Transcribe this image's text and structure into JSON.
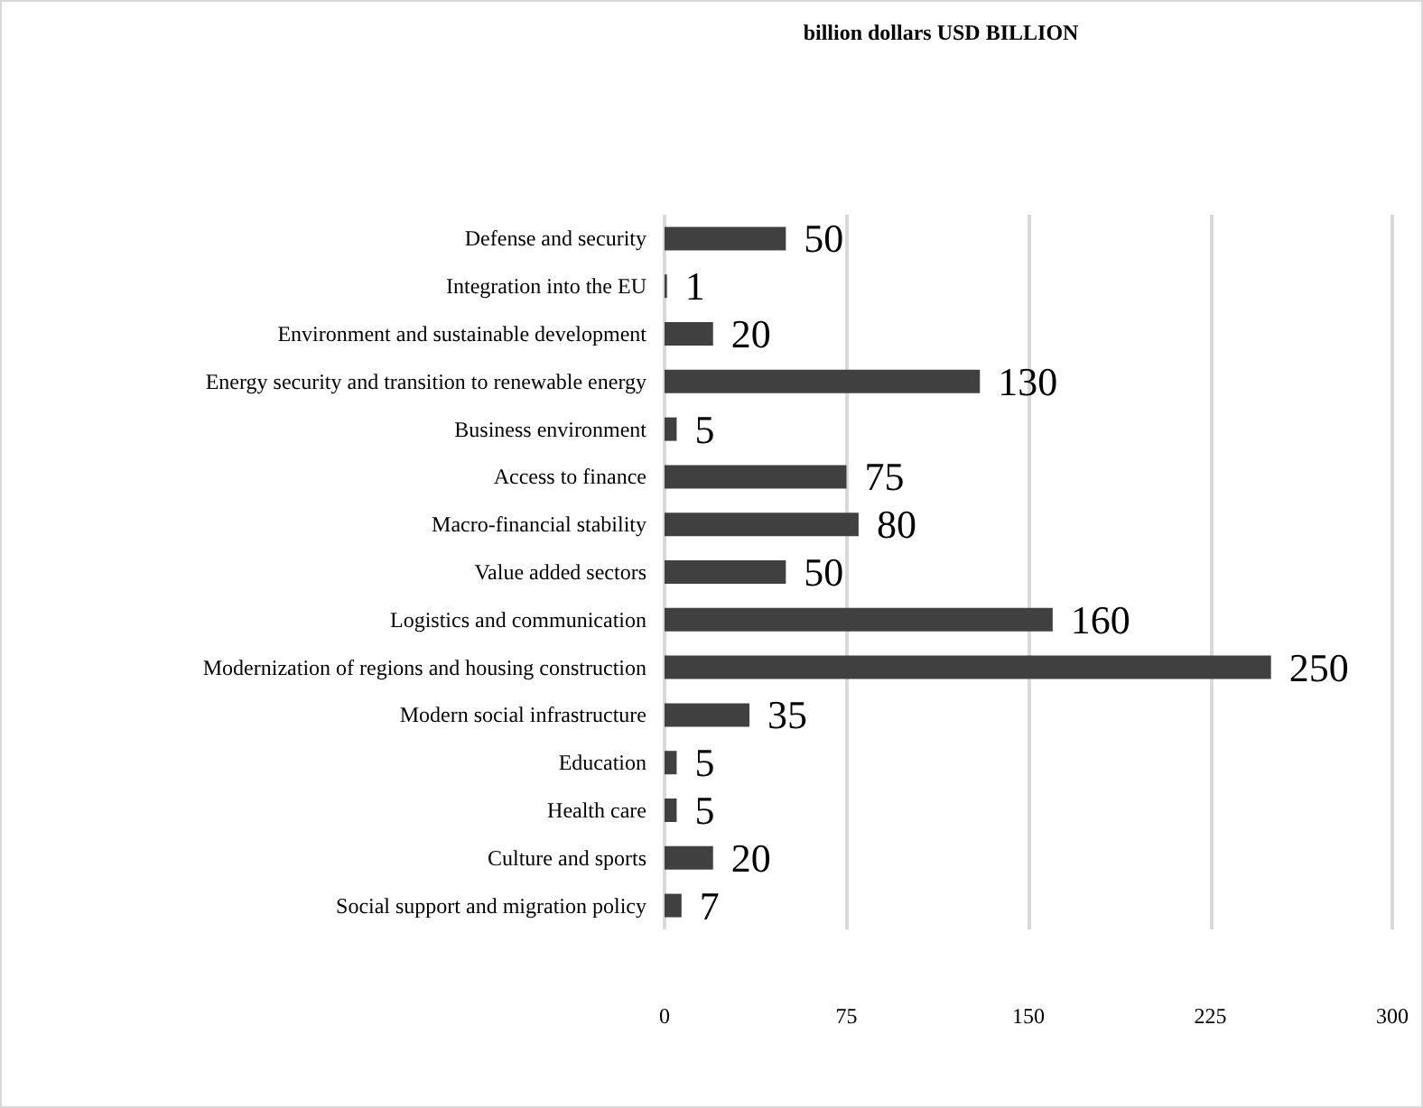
{
  "chart_data": {
    "type": "bar",
    "orientation": "horizontal",
    "title": "billion dollars USD BILLION",
    "categories": [
      "Defense and security",
      "Integration into the EU",
      "Environment and sustainable development",
      "Energy security and transition to renewable energy",
      "Business environment",
      "Access to finance",
      "Macro-financial stability",
      "Value added sectors",
      "Logistics and communication",
      "Modernization of regions and housing construction",
      "Modern social infrastructure",
      "Education",
      "Health care",
      "Culture and sports",
      "Social support and migration policy"
    ],
    "values": [
      50,
      1,
      20,
      130,
      5,
      75,
      80,
      50,
      160,
      250,
      35,
      5,
      5,
      20,
      7
    ],
    "color": "#404040",
    "xlim": [
      0,
      300
    ],
    "xticks": [
      0,
      75,
      150,
      225,
      300
    ],
    "grid": "x",
    "data_labels": true
  }
}
